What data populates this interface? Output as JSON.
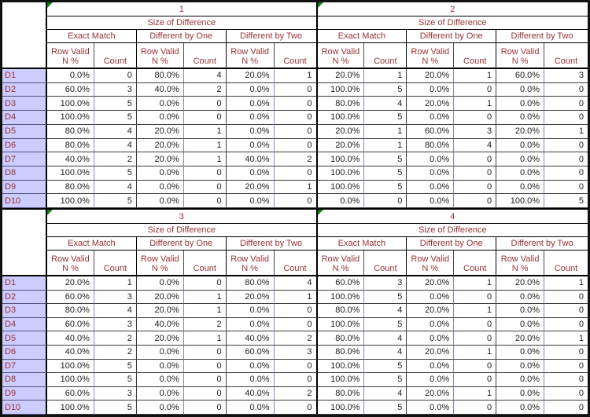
{
  "colors": {
    "header_text": "#993333",
    "data_text": "#222222",
    "label_bg": "#ccccff",
    "grid_purple": "#8585c8",
    "flag_green": "#0e7e0e"
  },
  "header": {
    "subtitle": "Size of Difference",
    "groups": [
      "Exact Match",
      "Different by One",
      "Different by Two"
    ],
    "subcol_percent": "Row Valid\nN %",
    "subcol_count": "Count"
  },
  "row_labels": [
    "D1",
    "D2",
    "D3",
    "D4",
    "D5",
    "D6",
    "D7",
    "D8",
    "D9",
    "D10"
  ],
  "panels": [
    {
      "number": "1",
      "rows": [
        [
          "0.0%",
          0,
          "80.0%",
          4,
          "20.0%",
          1
        ],
        [
          "60.0%",
          3,
          "40.0%",
          2,
          "0.0%",
          0
        ],
        [
          "100.0%",
          5,
          "0.0%",
          0,
          "0.0%",
          0
        ],
        [
          "100.0%",
          5,
          "0.0%",
          0,
          "0.0%",
          0
        ],
        [
          "80.0%",
          4,
          "20.0%",
          1,
          "0.0%",
          0
        ],
        [
          "80.0%",
          4,
          "20.0%",
          1,
          "0.0%",
          0
        ],
        [
          "40.0%",
          2,
          "20.0%",
          1,
          "40.0%",
          2
        ],
        [
          "100.0%",
          5,
          "0.0%",
          0,
          "0.0%",
          0
        ],
        [
          "80.0%",
          4,
          "0.0%",
          0,
          "20.0%",
          1
        ],
        [
          "100.0%",
          5,
          "0.0%",
          0,
          "0.0%",
          0
        ]
      ]
    },
    {
      "number": "2",
      "rows": [
        [
          "20.0%",
          1,
          "20.0%",
          1,
          "60.0%",
          3
        ],
        [
          "100.0%",
          5,
          "0.0%",
          0,
          "0.0%",
          0
        ],
        [
          "80.0%",
          4,
          "20.0%",
          1,
          "0.0%",
          0
        ],
        [
          "100.0%",
          5,
          "0.0%",
          0,
          "0.0%",
          0
        ],
        [
          "20.0%",
          1,
          "60.0%",
          3,
          "20.0%",
          1
        ],
        [
          "20.0%",
          1,
          "80.0%",
          4,
          "0.0%",
          0
        ],
        [
          "100.0%",
          5,
          "0.0%",
          0,
          "0.0%",
          0
        ],
        [
          "100.0%",
          5,
          "0.0%",
          0,
          "0.0%",
          0
        ],
        [
          "100.0%",
          5,
          "0.0%",
          0,
          "0.0%",
          0
        ],
        [
          "0.0%",
          0,
          "0.0%",
          0,
          "100.0%",
          5
        ]
      ]
    },
    {
      "number": "3",
      "rows": [
        [
          "20.0%",
          1,
          "0.0%",
          0,
          "80.0%",
          4
        ],
        [
          "60.0%",
          3,
          "20.0%",
          1,
          "20.0%",
          1
        ],
        [
          "80.0%",
          4,
          "20.0%",
          1,
          "0.0%",
          0
        ],
        [
          "60.0%",
          3,
          "40.0%",
          2,
          "0.0%",
          0
        ],
        [
          "40.0%",
          2,
          "20.0%",
          1,
          "40.0%",
          2
        ],
        [
          "40.0%",
          2,
          "0.0%",
          0,
          "60.0%",
          3
        ],
        [
          "100.0%",
          5,
          "0.0%",
          0,
          "0.0%",
          0
        ],
        [
          "100.0%",
          5,
          "0.0%",
          0,
          "0.0%",
          0
        ],
        [
          "60.0%",
          3,
          "0.0%",
          0,
          "40.0%",
          2
        ],
        [
          "100.0%",
          5,
          "0.0%",
          0,
          "0.0%",
          0
        ]
      ]
    },
    {
      "number": "4",
      "rows": [
        [
          "60.0%",
          3,
          "20.0%",
          1,
          "20.0%",
          1
        ],
        [
          "100.0%",
          5,
          "0.0%",
          0,
          "0.0%",
          0
        ],
        [
          "80.0%",
          4,
          "20.0%",
          1,
          "0.0%",
          0
        ],
        [
          "100.0%",
          5,
          "0.0%",
          0,
          "0.0%",
          0
        ],
        [
          "80.0%",
          4,
          "0.0%",
          0,
          "20.0%",
          1
        ],
        [
          "80.0%",
          4,
          "20.0%",
          1,
          "0.0%",
          0
        ],
        [
          "100.0%",
          5,
          "0.0%",
          0,
          "0.0%",
          0
        ],
        [
          "100.0%",
          5,
          "0.0%",
          0,
          "0.0%",
          0
        ],
        [
          "80.0%",
          4,
          "20.0%",
          1,
          "0.0%",
          0
        ],
        [
          "100.0%",
          5,
          "0.0%",
          0,
          "0.0%",
          0
        ]
      ]
    }
  ]
}
